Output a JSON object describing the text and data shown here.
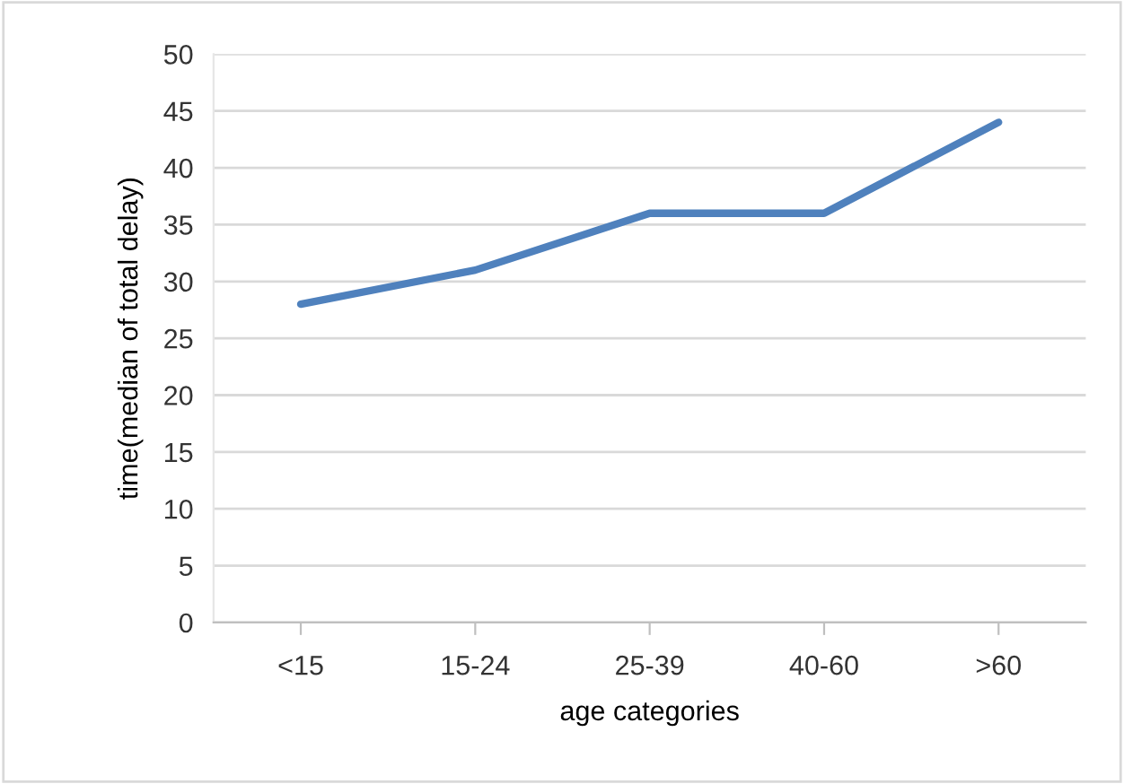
{
  "chart_data": {
    "type": "line",
    "xlabel": "age categories",
    "ylabel": "time(median of total delay)",
    "categories": [
      "<15",
      "15-24",
      "25-39",
      "40-60",
      ">60"
    ],
    "series": [
      {
        "color": "#4f81bd",
        "values": [
          28,
          31,
          36,
          36,
          44
        ]
      }
    ],
    "ylim": [
      0,
      50
    ],
    "yticks": [
      0,
      5,
      10,
      15,
      20,
      25,
      30,
      35,
      40,
      45,
      50
    ],
    "grid": "y",
    "legend": false,
    "marker": "none",
    "line_style": "solid"
  }
}
